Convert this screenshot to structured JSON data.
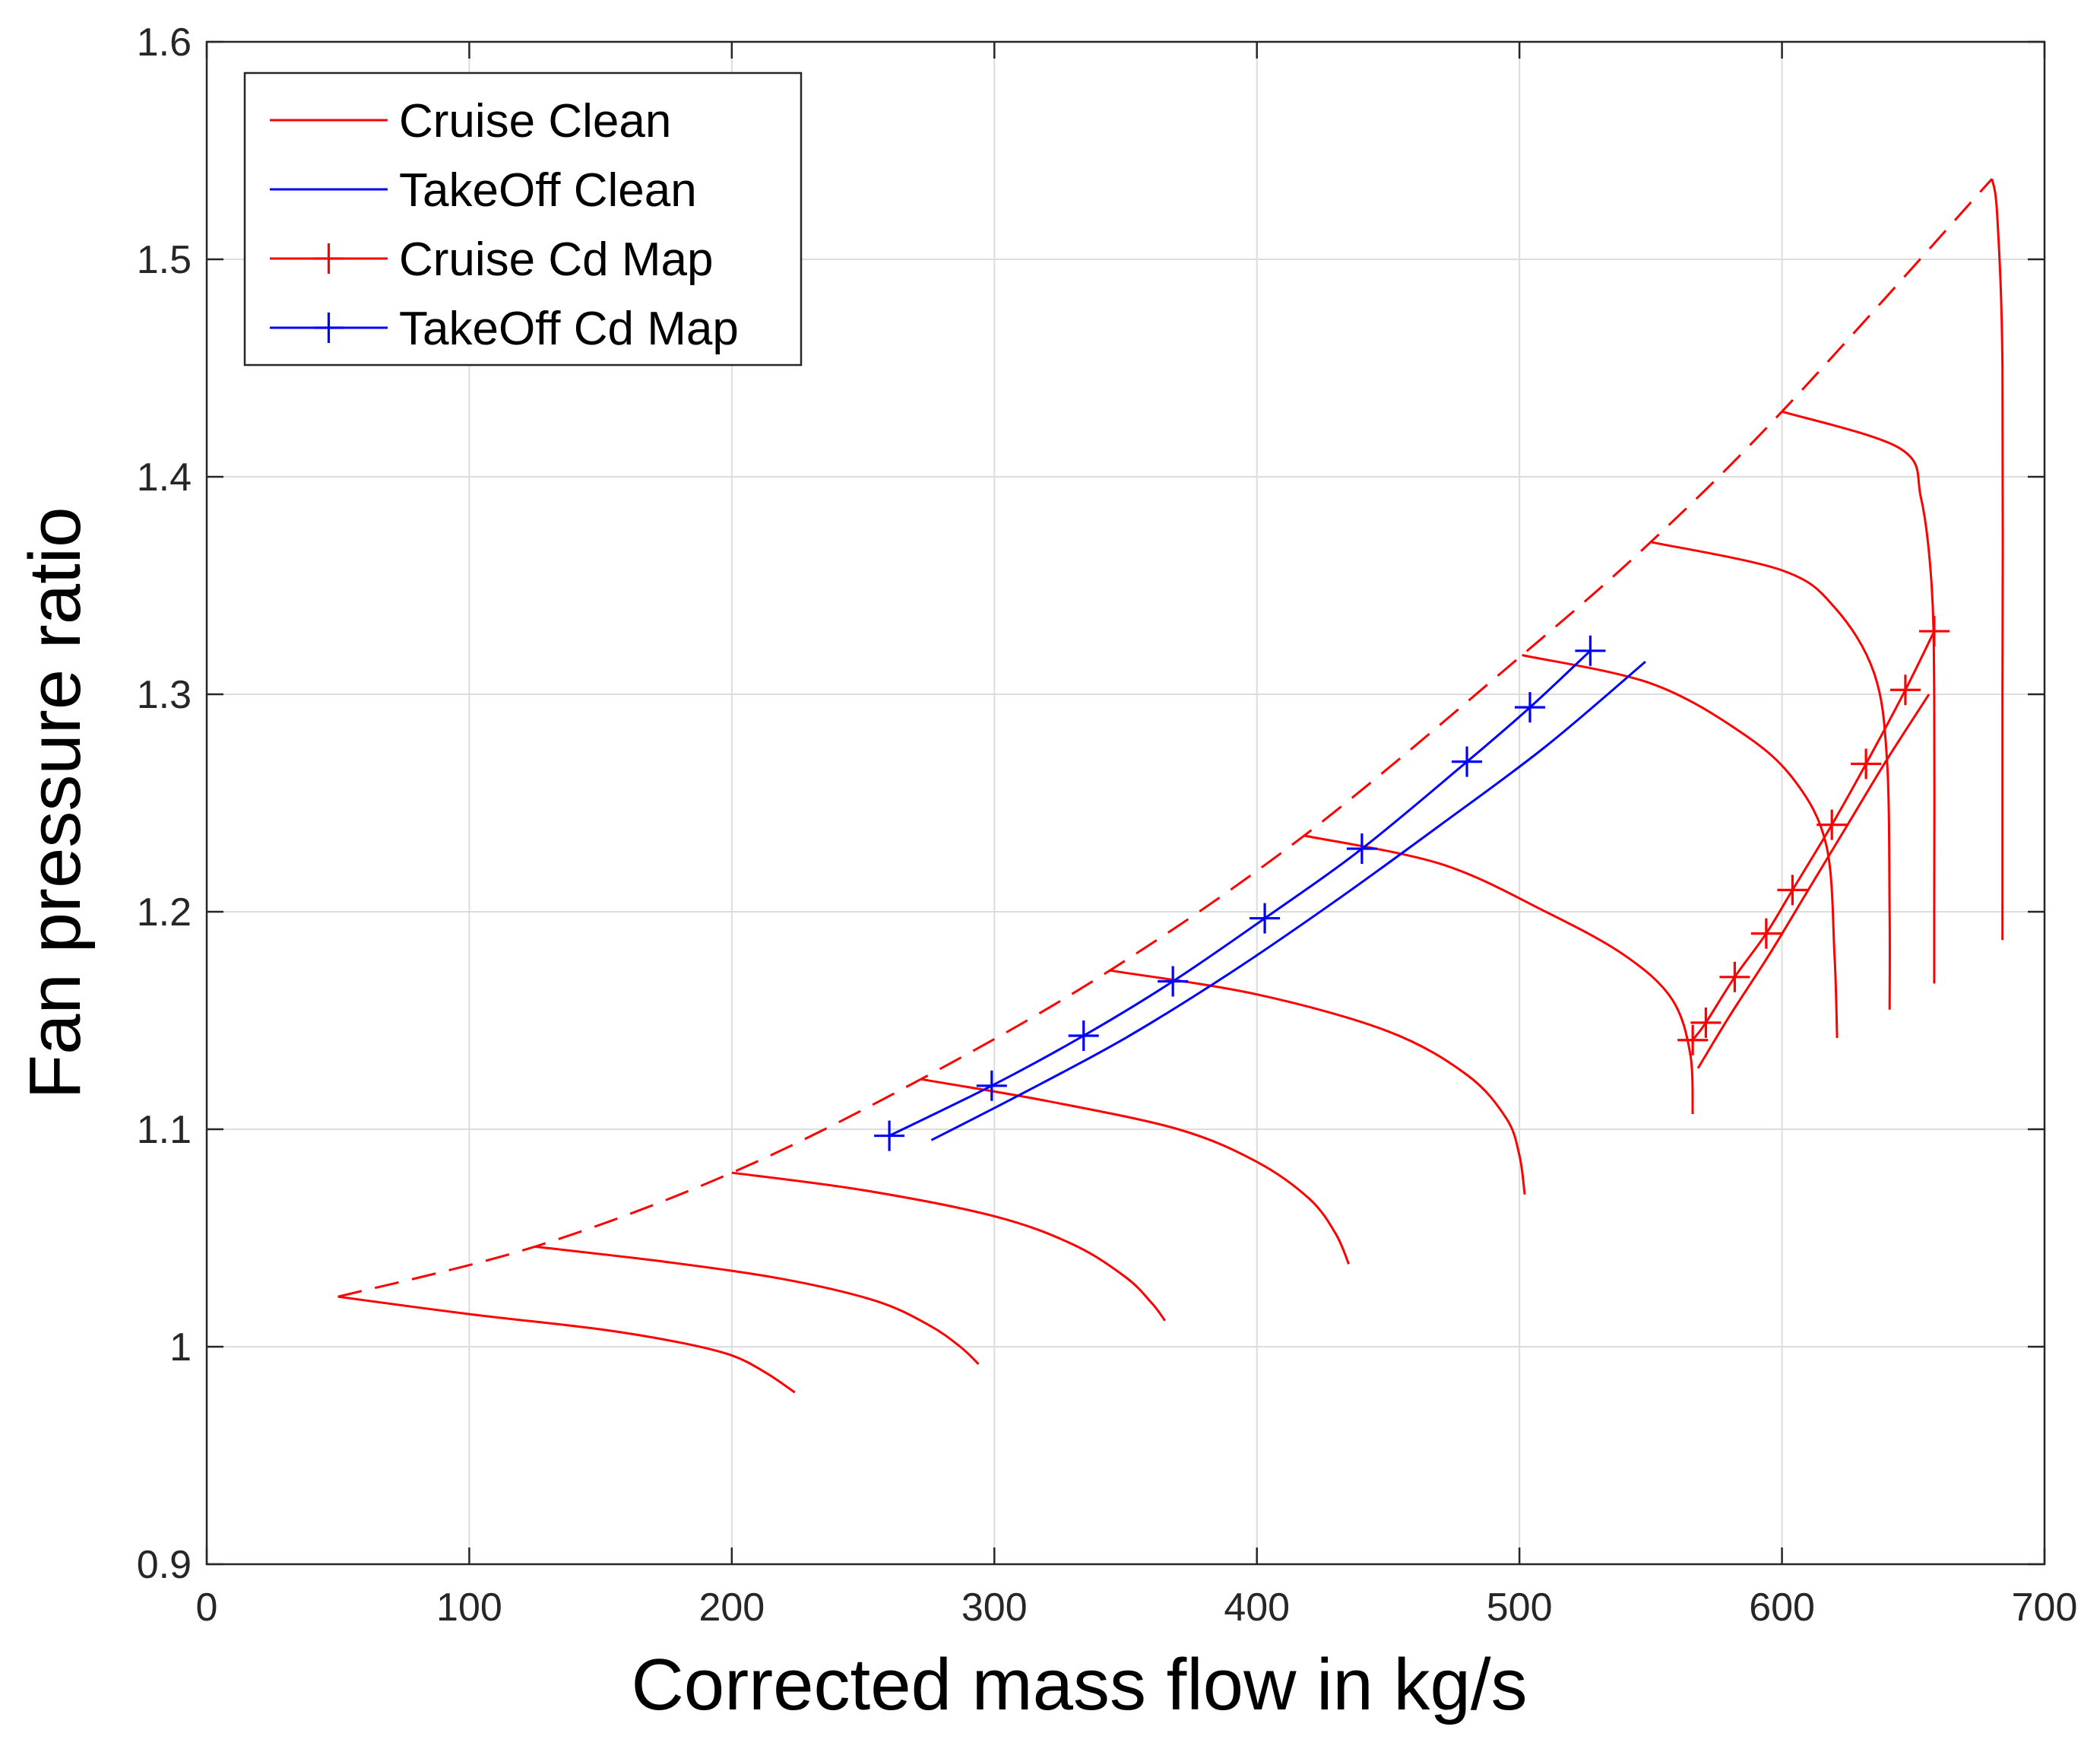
{
  "chart_data": {
    "type": "line",
    "title": "",
    "xlabel": "Corrected mass flow in kg/s",
    "ylabel": "Fan pressure ratio",
    "xlim": [
      0,
      700
    ],
    "ylim": [
      0.9,
      1.6
    ],
    "xticks": [
      0,
      100,
      200,
      300,
      400,
      500,
      600,
      700
    ],
    "yticks": [
      0.9,
      1,
      1.1,
      1.2,
      1.3,
      1.4,
      1.5,
      1.6
    ],
    "xtick_labels": [
      "0",
      "100",
      "200",
      "300",
      "400",
      "500",
      "600",
      "700"
    ],
    "ytick_labels": [
      "0.9",
      "1",
      "1.1",
      "1.2",
      "1.3",
      "1.4",
      "1.5",
      "1.6"
    ],
    "grid": true,
    "legend": {
      "placement": "top-left",
      "entries": [
        {
          "label": "Cruise Clean",
          "color": "#ff0000",
          "marker": "none"
        },
        {
          "label": "TakeOff Clean",
          "color": "#0000ff",
          "marker": "none"
        },
        {
          "label": "Cruise Cd Map",
          "color": "#ff0000",
          "marker": "+"
        },
        {
          "label": "TakeOff Cd Map",
          "color": "#0000ff",
          "marker": "+"
        }
      ]
    },
    "surge_line": {
      "color": "#ff0000",
      "style": "dashed",
      "points": [
        [
          50,
          1.023
        ],
        [
          125,
          1.046
        ],
        [
          200,
          1.08
        ],
        [
          272,
          1.123
        ],
        [
          344,
          1.173
        ],
        [
          418,
          1.235
        ],
        [
          501,
          1.318
        ],
        [
          550,
          1.37
        ],
        [
          600,
          1.43
        ],
        [
          680,
          1.537
        ]
      ]
    },
    "speed_lines": [
      {
        "color": "#ff0000",
        "points": [
          [
            50,
            1.023
          ],
          [
            100,
            1.015
          ],
          [
            150,
            1.008
          ],
          [
            180,
            1.002
          ],
          [
            200,
            0.996
          ],
          [
            213,
            0.988
          ],
          [
            224,
            0.979
          ]
        ]
      },
      {
        "color": "#ff0000",
        "points": [
          [
            125,
            1.046
          ],
          [
            175,
            1.039
          ],
          [
            220,
            1.031
          ],
          [
            255,
            1.021
          ],
          [
            275,
            1.01
          ],
          [
            287,
            1.0
          ],
          [
            294,
            0.992
          ]
        ]
      },
      {
        "color": "#ff0000",
        "points": [
          [
            200,
            1.08
          ],
          [
            250,
            1.072
          ],
          [
            300,
            1.06
          ],
          [
            330,
            1.047
          ],
          [
            350,
            1.032
          ],
          [
            360,
            1.02
          ],
          [
            365,
            1.012
          ]
        ]
      },
      {
        "color": "#ff0000",
        "points": [
          [
            272,
            1.123
          ],
          [
            320,
            1.113
          ],
          [
            370,
            1.1
          ],
          [
            400,
            1.085
          ],
          [
            420,
            1.068
          ],
          [
            430,
            1.052
          ],
          [
            435,
            1.038
          ]
        ]
      },
      {
        "color": "#ff0000",
        "points": [
          [
            344,
            1.173
          ],
          [
            400,
            1.162
          ],
          [
            450,
            1.145
          ],
          [
            480,
            1.125
          ],
          [
            495,
            1.105
          ],
          [
            500,
            1.088
          ],
          [
            502,
            1.07
          ]
        ]
      },
      {
        "color": "#ff0000",
        "points": [
          [
            418,
            1.235
          ],
          [
            470,
            1.222
          ],
          [
            510,
            1.2
          ],
          [
            540,
            1.18
          ],
          [
            558,
            1.16
          ],
          [
            565,
            1.135
          ],
          [
            566,
            1.107
          ]
        ]
      },
      {
        "color": "#ff0000",
        "points": [
          [
            501,
            1.318
          ],
          [
            550,
            1.305
          ],
          [
            585,
            1.282
          ],
          [
            605,
            1.26
          ],
          [
            617,
            1.23
          ],
          [
            620,
            1.18
          ],
          [
            621,
            1.142
          ]
        ]
      },
      {
        "color": "#ff0000",
        "points": [
          [
            550,
            1.37
          ],
          [
            600,
            1.357
          ],
          [
            620,
            1.34
          ],
          [
            635,
            1.31
          ],
          [
            640,
            1.27
          ],
          [
            641,
            1.2
          ],
          [
            641,
            1.155
          ]
        ]
      },
      {
        "color": "#ff0000",
        "points": [
          [
            600,
            1.43
          ],
          [
            645,
            1.413
          ],
          [
            653,
            1.39
          ],
          [
            657,
            1.35
          ],
          [
            658,
            1.3
          ],
          [
            658,
            1.2
          ],
          [
            658,
            1.167
          ]
        ]
      },
      {
        "color": "#ff0000",
        "points": [
          [
            680,
            1.537
          ],
          [
            682,
            1.52
          ],
          [
            684,
            1.45
          ],
          [
            684,
            1.3
          ],
          [
            684,
            1.187
          ]
        ]
      }
    ],
    "series": [
      {
        "name": "TakeOff Cd Map",
        "color": "#0000ff",
        "marker": "+",
        "x": [
          260,
          299,
          334,
          368,
          403,
          440,
          480,
          504,
          527
        ],
        "y": [
          1.097,
          1.12,
          1.143,
          1.168,
          1.197,
          1.229,
          1.269,
          1.294,
          1.32
        ]
      },
      {
        "name": "TakeOff Clean",
        "color": "#0000ff",
        "marker": "none",
        "x": [
          276,
          310,
          350,
          390,
          430,
          470,
          510,
          548
        ],
        "y": [
          1.095,
          1.116,
          1.142,
          1.172,
          1.205,
          1.24,
          1.276,
          1.315
        ]
      },
      {
        "name": "Cruise Cd Map",
        "color": "#ff0000",
        "marker": "+",
        "x": [
          566,
          571,
          582,
          594,
          604,
          619,
          632,
          647,
          658
        ],
        "y": [
          1.141,
          1.149,
          1.17,
          1.19,
          1.21,
          1.24,
          1.268,
          1.302,
          1.329
        ]
      },
      {
        "name": "Cruise Clean",
        "color": "#ff0000",
        "marker": "none",
        "x": [
          568,
          580,
          595,
          610,
          625,
          640,
          656
        ],
        "y": [
          1.128,
          1.152,
          1.18,
          1.21,
          1.24,
          1.27,
          1.3
        ]
      }
    ]
  }
}
